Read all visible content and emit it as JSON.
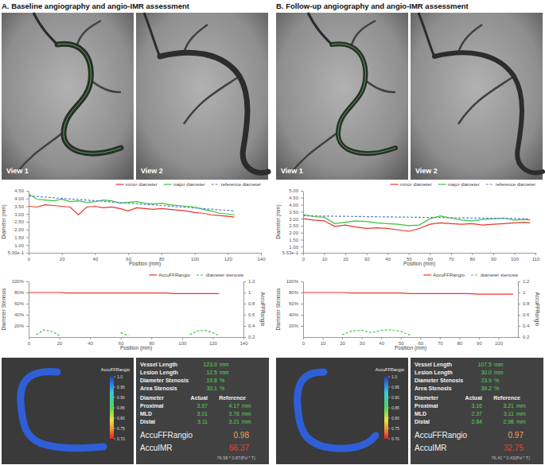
{
  "panels": [
    {
      "title": "A. Baseline angiography and angio-IMR assessment",
      "views": [
        "View 1",
        "View 2"
      ],
      "colorbar": {
        "label": "AccuFFRangio",
        "range": [
          0.7,
          1.0
        ],
        "ticks": [
          {
            "value": 1.0,
            "label": "1.0"
          },
          0.95,
          {
            "value": 0.9,
            "label": "0.90"
          },
          0.85,
          {
            "value": 0.8,
            "label": "0.80"
          },
          0.75,
          {
            "value": 0.7,
            "label": "0.70"
          }
        ]
      },
      "results": {
        "rows": [
          [
            "Vessel Length",
            "123.9",
            "mm"
          ],
          [
            "Lesion Length",
            "12.5",
            "mm"
          ],
          [
            "Diameter Stenosis",
            "19.8",
            "%"
          ],
          [
            "Area Stenosis",
            "33.1",
            "%"
          ]
        ],
        "diameter_header": [
          "Diameter",
          "Actual",
          "Reference"
        ],
        "diameter_rows": [
          [
            "Proximal",
            "3.97",
            "4.17",
            "mm"
          ],
          [
            "MLD",
            "3.01",
            "3.76",
            "mm"
          ],
          [
            "Distal",
            "3.11",
            "3.21",
            "mm"
          ]
        ],
        "ffr": [
          "AccuFFRangio",
          "0.98"
        ],
        "imr": [
          "AccuIMR",
          "66.37"
        ],
        "imr_formula": "76.58 * 0.87(Pd * T)"
      }
    },
    {
      "title": "B. Follow-up angiography and angio-IMR assessment",
      "views": [
        "View 1",
        "View 2"
      ],
      "colorbar": {
        "label": "AccuFFRangio",
        "range": [
          0.7,
          1.0
        ],
        "ticks": [
          {
            "value": 1.0,
            "label": "1.0"
          },
          0.95,
          {
            "value": 0.9,
            "label": "0.90"
          },
          0.85,
          {
            "value": 0.8,
            "label": "0.80"
          },
          0.75,
          {
            "value": 0.7,
            "label": "0.70"
          }
        ]
      },
      "results": {
        "rows": [
          [
            "Vessel Length",
            "107.5",
            "mm"
          ],
          [
            "Lesion Length",
            "30.0",
            "mm"
          ],
          [
            "Diameter Stenosis",
            "23.9",
            "%"
          ],
          [
            "Area Stenosis",
            "39.2",
            "%"
          ]
        ],
        "diameter_header": [
          "Diameter",
          "Actual",
          "Reference"
        ],
        "diameter_rows": [
          [
            "Proximal",
            "3.16",
            "3.21",
            "mm"
          ],
          [
            "MLD",
            "2.37",
            "3.11",
            "mm"
          ],
          [
            "Distal",
            "2.84",
            "2.98",
            "mm"
          ]
        ],
        "ffr": [
          "AccuFFRangio",
          "0.97"
        ],
        "imr": [
          "AccuIMR",
          "32.75"
        ],
        "imr_formula": "76.41 * 0.43(Pd * T)"
      }
    }
  ],
  "chart_data": [
    {
      "type": "line",
      "x_label": "Position (mm)",
      "y_label": "Diameter (mm)",
      "x": [
        0,
        5,
        10,
        15,
        20,
        25,
        30,
        35,
        40,
        45,
        50,
        55,
        60,
        65,
        70,
        75,
        80,
        85,
        90,
        95,
        100,
        105,
        110,
        115,
        120,
        124
      ],
      "xlim": [
        0,
        140
      ],
      "xticks": [
        0,
        20,
        40,
        60,
        80,
        100,
        120,
        140
      ],
      "ylim": [
        0.5,
        4.5
      ],
      "yticks": [
        {
          "value": 0.5,
          "label": "5.00e-1"
        },
        {
          "value": 1,
          "label": "1.00"
        },
        {
          "value": 1.5,
          "label": "1.50"
        },
        {
          "value": 2,
          "label": "2.00"
        },
        {
          "value": 2.5,
          "label": "2.50"
        },
        {
          "value": 3,
          "label": "3.00"
        },
        {
          "value": 3.5,
          "label": "3.50"
        },
        {
          "value": 4,
          "label": "4.00"
        },
        {
          "value": 4.5,
          "label": "4.50"
        }
      ],
      "grid": false,
      "legend": "top-right",
      "series": [
        {
          "name": "minor diameter",
          "color": "#e8352c",
          "line_style": "solid",
          "values": [
            3.5,
            3.45,
            3.6,
            3.55,
            3.5,
            3.45,
            2.95,
            3.45,
            3.5,
            3.4,
            3.45,
            3.35,
            3.2,
            3.4,
            3.35,
            3.3,
            3.35,
            3.3,
            3.25,
            3.2,
            3.1,
            3.05,
            2.95,
            2.9,
            2.85,
            2.8
          ]
        },
        {
          "name": "major diameter",
          "color": "#3cc23c",
          "line_style": "solid",
          "values": [
            4.3,
            3.95,
            3.9,
            3.85,
            3.95,
            3.8,
            3.85,
            3.75,
            3.8,
            3.9,
            3.85,
            3.7,
            3.75,
            3.8,
            3.7,
            3.65,
            3.7,
            3.6,
            3.55,
            3.5,
            3.45,
            3.3,
            3.2,
            3.05,
            3.0,
            2.95
          ]
        },
        {
          "name": "reference diameter",
          "color": "#5a7fd0",
          "line_style": "dashed",
          "values": [
            4.17,
            4.13,
            4.09,
            4.05,
            4.01,
            3.97,
            3.94,
            3.9,
            3.86,
            3.82,
            3.78,
            3.74,
            3.7,
            3.66,
            3.62,
            3.59,
            3.55,
            3.51,
            3.47,
            3.43,
            3.39,
            3.35,
            3.31,
            3.27,
            3.24,
            3.21
          ]
        }
      ]
    },
    {
      "type": "line",
      "x_label": "Position (mm)",
      "y_label": "Diameter Stenosis",
      "y2_label": "AccuFFRangio",
      "x": [
        0,
        5,
        10,
        15,
        20,
        25,
        30,
        35,
        40,
        45,
        50,
        55,
        60,
        65,
        70,
        75,
        80,
        85,
        90,
        95,
        100,
        105,
        110,
        115,
        120,
        124
      ],
      "xlim": [
        0,
        140
      ],
      "xticks": [
        0,
        20,
        40,
        60,
        80,
        100,
        120,
        140
      ],
      "ylim": [
        0,
        100
      ],
      "yticks": [
        {
          "value": 20,
          "label": "20%"
        },
        {
          "value": 40,
          "label": "40%"
        },
        {
          "value": 60,
          "label": "60%"
        },
        {
          "value": 80,
          "label": "80%"
        },
        {
          "value": 100,
          "label": "100%"
        }
      ],
      "y2lim": [
        0.2,
        1.2
      ],
      "y2ticks": [
        0.2,
        0.4,
        0.6,
        0.8,
        1,
        1.2
      ],
      "grid": false,
      "legend": "top-right",
      "series": [
        {
          "name": "AccuFFRangio",
          "color": "#e8352c",
          "line_style": "solid",
          "axis": "y2",
          "values": [
            1,
            1,
            1,
            1,
            1,
            0.99,
            0.99,
            0.99,
            0.99,
            0.99,
            0.99,
            0.99,
            0.99,
            0.99,
            0.99,
            0.99,
            0.99,
            0.99,
            0.99,
            0.98,
            0.98,
            0.98,
            0.98,
            0.98,
            0.98,
            0.98
          ]
        },
        {
          "name": "diameter stenosis",
          "color": "#49c149",
          "line_style": "dashed",
          "values": [
            null,
            4,
            13,
            10,
            3,
            null,
            null,
            null,
            null,
            null,
            null,
            null,
            8,
            2,
            null,
            null,
            null,
            null,
            null,
            null,
            null,
            4,
            11,
            12,
            8,
            3
          ]
        }
      ]
    },
    {
      "type": "line",
      "x_label": "Position (mm)",
      "y_label": "Diameter (mm)",
      "x": [
        0,
        5,
        10,
        15,
        20,
        25,
        30,
        35,
        40,
        45,
        50,
        55,
        60,
        65,
        70,
        75,
        80,
        85,
        90,
        95,
        100,
        105,
        107.5
      ],
      "xlim": [
        0,
        110
      ],
      "xticks": [
        0,
        10,
        20,
        30,
        40,
        50,
        60,
        70,
        80,
        90,
        100,
        110
      ],
      "ylim": [
        0.563,
        5.0
      ],
      "yticks": [
        {
          "value": 0.563,
          "label": "5.63e-1"
        },
        {
          "value": 1,
          "label": "1.00"
        },
        {
          "value": 1.5,
          "label": "1.50"
        },
        {
          "value": 2,
          "label": "2.00"
        },
        {
          "value": 2.5,
          "label": "2.50"
        },
        {
          "value": 3,
          "label": "3.00"
        },
        {
          "value": 3.5,
          "label": "3.50"
        },
        {
          "value": 4,
          "label": "4.00"
        },
        {
          "value": 4.5,
          "label": "4.50"
        },
        {
          "value": 5,
          "label": "5.00"
        }
      ],
      "grid": false,
      "legend": "top-right",
      "series": [
        {
          "name": "minor diameter",
          "color": "#e8352c",
          "line_style": "solid",
          "values": [
            3.0,
            2.9,
            2.85,
            2.45,
            2.55,
            2.4,
            2.3,
            2.35,
            2.3,
            2.2,
            2.1,
            2.3,
            2.6,
            2.7,
            2.65,
            2.6,
            2.65,
            2.55,
            2.6,
            2.65,
            2.7,
            2.75,
            2.7
          ]
        },
        {
          "name": "major diameter",
          "color": "#3cc23c",
          "line_style": "solid",
          "values": [
            3.3,
            3.15,
            3.1,
            2.65,
            2.75,
            2.85,
            2.8,
            2.7,
            2.65,
            2.6,
            2.5,
            2.55,
            3.0,
            3.2,
            3.05,
            2.9,
            2.85,
            2.95,
            3.0,
            3.05,
            2.9,
            2.95,
            2.9
          ]
        },
        {
          "name": "reference diameter",
          "color": "#5a7fd0",
          "line_style": "dashed",
          "values": [
            3.21,
            3.2,
            3.19,
            3.18,
            3.17,
            3.16,
            3.15,
            3.14,
            3.13,
            3.12,
            3.11,
            3.1,
            3.09,
            3.08,
            3.07,
            3.06,
            3.05,
            3.04,
            3.03,
            3.02,
            3.01,
            3.0,
            2.98
          ]
        }
      ]
    },
    {
      "type": "line",
      "x_label": "Position (mm)",
      "y_label": "Diameter Stenosis",
      "y2_label": "AccuFFRangio",
      "x": [
        0,
        5,
        10,
        15,
        20,
        25,
        30,
        35,
        40,
        45,
        50,
        55,
        60,
        65,
        70,
        75,
        80,
        85,
        90,
        95,
        100,
        105,
        107.5
      ],
      "xlim": [
        0,
        110
      ],
      "xticks": [
        0,
        10,
        20,
        30,
        40,
        50,
        60,
        70,
        80,
        90,
        100
      ],
      "ylim": [
        0,
        100
      ],
      "yticks": [
        {
          "value": 20,
          "label": "20%"
        },
        {
          "value": 40,
          "label": "40%"
        },
        {
          "value": 60,
          "label": "60%"
        },
        {
          "value": 80,
          "label": "80%"
        },
        {
          "value": 100,
          "label": "100%"
        }
      ],
      "y2lim": [
        0.2,
        1.2
      ],
      "y2ticks": [
        0.2,
        0.4,
        0.6,
        0.8,
        1,
        1.2
      ],
      "grid": false,
      "legend": "top-right",
      "series": [
        {
          "name": "AccuFFRangio",
          "color": "#e8352c",
          "line_style": "solid",
          "axis": "y2",
          "values": [
            1,
            1,
            1,
            1,
            1,
            0.99,
            0.99,
            0.99,
            0.99,
            0.99,
            0.99,
            0.98,
            0.98,
            0.98,
            0.98,
            0.98,
            0.98,
            0.98,
            0.97,
            0.97,
            0.97,
            0.97,
            0.97
          ]
        },
        {
          "name": "diameter stenosis",
          "color": "#49c149",
          "line_style": "dashed",
          "values": [
            null,
            null,
            null,
            null,
            4,
            11,
            12,
            8,
            12,
            13,
            10,
            3,
            null,
            null,
            null,
            null,
            null,
            null,
            null,
            null,
            null,
            null,
            null
          ]
        }
      ]
    }
  ]
}
